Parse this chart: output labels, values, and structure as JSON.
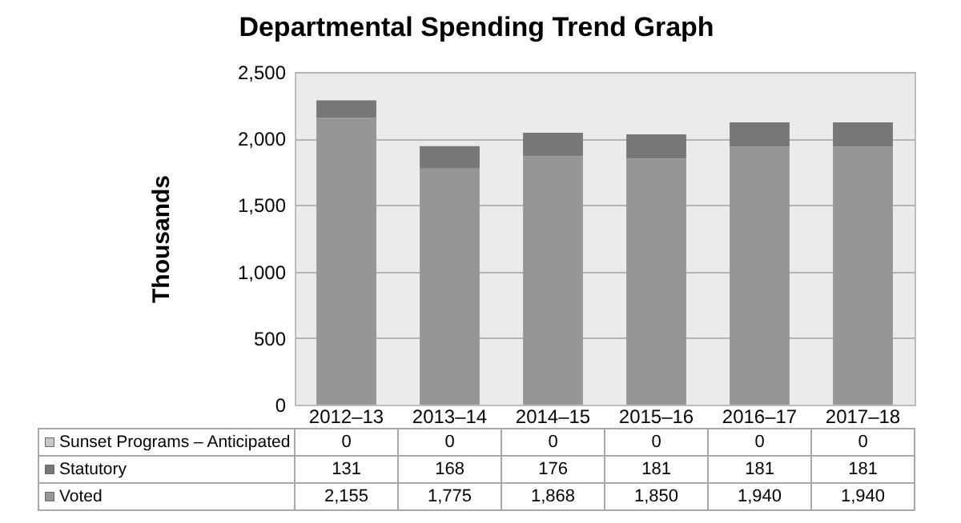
{
  "chart_data": {
    "type": "bar",
    "title": "Departmental Spending Trend Graph",
    "ylabel": "Thousands",
    "categories": [
      "2012–13",
      "2013–14",
      "2014–15",
      "2015–16",
      "2016–17",
      "2017–18"
    ],
    "stacked": true,
    "series": [
      {
        "name": "Voted",
        "color": "#969696",
        "values": [
          2155,
          1775,
          1868,
          1850,
          1940,
          1940
        ],
        "value_labels": [
          "2,155",
          "1,775",
          "1,868",
          "1,850",
          "1,940",
          "1,940"
        ]
      },
      {
        "name": "Statutory",
        "color": "#777777",
        "values": [
          131,
          168,
          176,
          181,
          181,
          181
        ],
        "value_labels": [
          "131",
          "168",
          "176",
          "181",
          "181",
          "181"
        ]
      },
      {
        "name": "Sunset Programs – Anticipated",
        "color": "#c8c8c8",
        "values": [
          0,
          0,
          0,
          0,
          0,
          0
        ],
        "value_labels": [
          "0",
          "0",
          "0",
          "0",
          "0",
          "0"
        ]
      }
    ],
    "ylim": [
      0,
      2500
    ],
    "yticks": [
      0,
      500,
      {
        "value": 1000,
        "label": "1,000"
      },
      {
        "value": 1500,
        "label": "1,500"
      },
      {
        "value": 2000,
        "label": "2,000"
      },
      {
        "value": 2500,
        "label": "2,500"
      }
    ],
    "grid": "y",
    "legend": "bottom"
  }
}
